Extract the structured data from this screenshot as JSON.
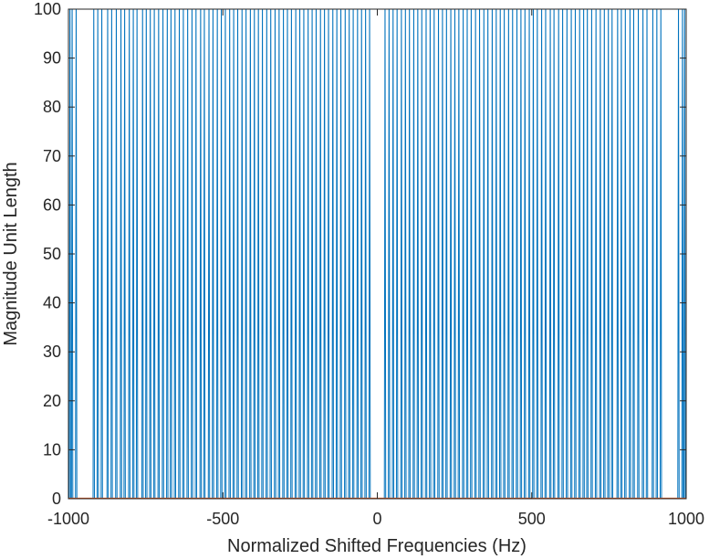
{
  "chart_data": {
    "type": "line",
    "title": "",
    "xlabel": "Normalized Shifted Frequencies (Hz)",
    "ylabel": "Magnitude Unit Length",
    "xlim": [
      -1000,
      1000
    ],
    "ylim": [
      0,
      100
    ],
    "xticks": [
      -1000,
      -500,
      0,
      500,
      1000
    ],
    "xtick_labels": [
      "-1000",
      "-500",
      "0",
      "500",
      "1000"
    ],
    "yticks": [
      0,
      10,
      20,
      30,
      40,
      50,
      60,
      70,
      80,
      90,
      100
    ],
    "ytick_labels": [
      "0",
      "10",
      "20",
      "30",
      "40",
      "50",
      "60",
      "70",
      "80",
      "90",
      "100"
    ],
    "grid": false,
    "legend": "none",
    "series": [
      {
        "color": "#0072BD",
        "description_of_shape": "dense spikes from 0 up past 100 across the band, symmetric about 0 Hz, gap near 0",
        "spike_frequencies": [
          -995,
          -988,
          -975,
          -918,
          -905,
          -892,
          -873,
          -860,
          -845,
          -830,
          -818,
          -803,
          -790,
          -778,
          -760,
          -748,
          -735,
          -722,
          -708,
          -694,
          -680,
          -668,
          -655,
          -641,
          -628,
          -614,
          -600,
          -587,
          -572,
          -560,
          -545,
          -532,
          -518,
          -505,
          -492,
          -478,
          -465,
          -452,
          -438,
          -425,
          -411,
          -398,
          -385,
          -372,
          -358,
          -345,
          -331,
          -318,
          -304,
          -291,
          -278,
          -264,
          -251,
          -238,
          -224,
          -211,
          -198,
          -184,
          -171,
          -158,
          -144,
          -131,
          -118,
          -104,
          -91,
          -78,
          -64,
          -51,
          -38,
          -25,
          25,
          38,
          51,
          64,
          78,
          91,
          104,
          118,
          131,
          144,
          158,
          171,
          184,
          198,
          211,
          224,
          238,
          251,
          264,
          278,
          291,
          304,
          318,
          331,
          345,
          358,
          372,
          385,
          398,
          411,
          425,
          438,
          452,
          465,
          478,
          492,
          505,
          518,
          532,
          545,
          560,
          572,
          587,
          600,
          614,
          628,
          641,
          655,
          668,
          680,
          694,
          708,
          722,
          735,
          748,
          760,
          778,
          790,
          803,
          818,
          830,
          845,
          860,
          873,
          892,
          905,
          918,
          975,
          988,
          995
        ],
        "spike_height": 100
      },
      {
        "color": "#D95319",
        "description_of_shape": "flat line at 0",
        "x": [
          -1000,
          1000
        ],
        "values": [
          0,
          0
        ]
      }
    ]
  }
}
